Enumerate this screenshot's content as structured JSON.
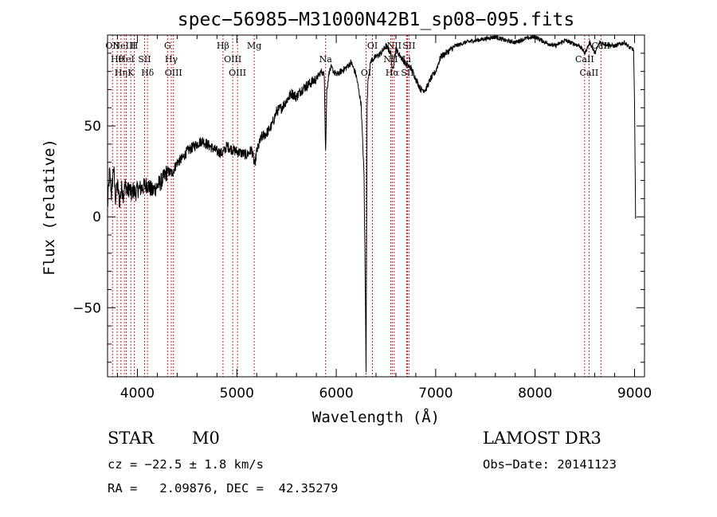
{
  "chart_data": {
    "type": "line",
    "title": "spec−56985−M31000N42B1_sp08−095.fits",
    "xlabel": "Wavelength (Å)",
    "ylabel": "Flux (relative)",
    "xlim": [
      3700,
      9100
    ],
    "ylim": [
      -88,
      100
    ],
    "x_ticks": [
      {
        "value": 4000,
        "label": "4000"
      },
      {
        "value": 5000,
        "label": "5000"
      },
      {
        "value": 6000,
        "label": "6000"
      },
      {
        "value": 7000,
        "label": "7000"
      },
      {
        "value": 8000,
        "label": "8000"
      },
      {
        "value": 9000,
        "label": "9000"
      }
    ],
    "y_ticks": [
      {
        "value": -50,
        "label": "−50"
      },
      {
        "value": 0,
        "label": "0"
      },
      {
        "value": 50,
        "label": "50"
      }
    ],
    "series": [
      {
        "x": [
          3700,
          3720,
          3740,
          3760,
          3780,
          3800,
          3820,
          3840,
          3860,
          3880,
          3900,
          3920,
          3940,
          3960,
          3980,
          4000,
          4050,
          4100,
          4150,
          4200,
          4250,
          4300,
          4350,
          4400,
          4450,
          4500,
          4550,
          4600,
          4650,
          4700,
          4750,
          4800,
          4850,
          4870,
          4900,
          4950,
          5000,
          5050,
          5100,
          5150,
          5180,
          5200,
          5250,
          5300,
          5350,
          5400,
          5450,
          5500,
          5550,
          5600,
          5650,
          5700,
          5750,
          5800,
          5850,
          5880,
          5893,
          5905,
          5930,
          5950,
          6000,
          6050,
          6100,
          6150,
          6200,
          6250,
          6280,
          6300,
          6310,
          6320,
          6350,
          6400,
          6450,
          6500,
          6550,
          6563,
          6600,
          6650,
          6700,
          6750,
          6800,
          6850,
          6900,
          6950,
          7000,
          7050,
          7100,
          7150,
          7200,
          7300,
          7400,
          7500,
          7600,
          7700,
          7800,
          7900,
          8000,
          8100,
          8200,
          8300,
          8400,
          8450,
          8500,
          8550,
          8600,
          8650,
          8700,
          8800,
          8900,
          8950,
          8990,
          9000,
          9010
        ],
        "y": [
          5,
          25,
          12,
          28,
          10,
          18,
          8,
          16,
          12,
          18,
          14,
          16,
          12,
          15,
          13,
          15,
          16,
          18,
          14,
          17,
          20,
          25,
          24,
          30,
          32,
          36,
          38,
          40,
          42,
          40,
          38,
          36,
          35,
          36,
          39,
          37,
          36,
          35,
          34,
          37,
          28,
          36,
          44,
          46,
          50,
          58,
          60,
          64,
          68,
          66,
          70,
          72,
          74,
          76,
          80,
          78,
          35,
          70,
          80,
          82,
          78,
          80,
          82,
          85,
          78,
          62,
          22,
          -84,
          60,
          76,
          86,
          88,
          90,
          94,
          90,
          80,
          92,
          88,
          84,
          82,
          76,
          70,
          70,
          76,
          80,
          88,
          90,
          92,
          94,
          96,
          97,
          98,
          99,
          97,
          96,
          98,
          99,
          96,
          94,
          97,
          95,
          94,
          90,
          96,
          90,
          96,
          95,
          94,
          96,
          93,
          92,
          62,
          0
        ]
      }
    ],
    "lines": [
      {
        "wl": 3750,
        "labels": [
          "OII"
        ]
      },
      {
        "wl": 3797,
        "labels": [
          "Hθ"
        ]
      },
      {
        "wl": 3835,
        "labels": [
          "Hη"
        ]
      },
      {
        "wl": 3869,
        "labels": [
          "NeIII"
        ]
      },
      {
        "wl": 3889,
        "labels": [
          "HeI"
        ]
      },
      {
        "wl": 3934,
        "labels": [
          "K"
        ]
      },
      {
        "wl": 3969,
        "labels": [
          "H"
        ]
      },
      {
        "wl": 4072,
        "labels": [
          "SII"
        ]
      },
      {
        "wl": 4102,
        "labels": [
          "Hδ"
        ]
      },
      {
        "wl": 4304,
        "labels": [
          "G"
        ]
      },
      {
        "wl": 4341,
        "labels": [
          "Hγ"
        ]
      },
      {
        "wl": 4363,
        "labels": [
          "OIII"
        ]
      },
      {
        "wl": 4861,
        "labels": [
          "Hβ"
        ]
      },
      {
        "wl": 4959,
        "labels": [
          "OIII"
        ]
      },
      {
        "wl": 5007,
        "labels": [
          "OIII"
        ]
      },
      {
        "wl": 5175,
        "labels": [
          "Mg"
        ]
      },
      {
        "wl": 5893,
        "labels": [
          "Na"
        ]
      },
      {
        "wl": 6300,
        "labels": [
          "OI"
        ]
      },
      {
        "wl": 6364,
        "labels": [
          "OI"
        ]
      },
      {
        "wl": 6548,
        "labels": [
          "NII"
        ]
      },
      {
        "wl": 6563,
        "labels": [
          "Hα"
        ]
      },
      {
        "wl": 6583,
        "labels": [
          "NII"
        ]
      },
      {
        "wl": 6708,
        "labels": [
          "Li"
        ]
      },
      {
        "wl": 6716,
        "labels": [
          "SII"
        ]
      },
      {
        "wl": 6731,
        "labels": [
          "SII"
        ]
      },
      {
        "wl": 8498,
        "labels": [
          "CaII"
        ]
      },
      {
        "wl": 8542,
        "labels": [
          "CaII"
        ]
      },
      {
        "wl": 8662,
        "labels": [
          "CaII"
        ]
      }
    ],
    "line_color": "#cc2020",
    "grid": false,
    "legend": "none"
  },
  "info": {
    "class": "STAR",
    "subclass": "M0",
    "survey": "LAMOST DR3",
    "cz": "cz = −22.5 ± 1.8 km/s",
    "obs_date": "Obs−Date: 20141123",
    "coords": "RA =   2.09876, DEC =  42.35279"
  }
}
